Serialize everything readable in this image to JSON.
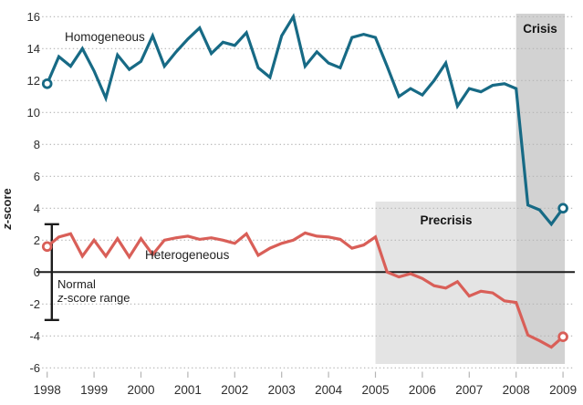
{
  "chart_data": {
    "type": "line",
    "title": "",
    "ylabel": {
      "z": "z",
      "rest": "-score"
    },
    "x_start": 1998,
    "x_step": 0.25,
    "x_tick_labels": [
      "1998",
      "1999",
      "2000",
      "2001",
      "2002",
      "2003",
      "2004",
      "2005",
      "2006",
      "2007",
      "2008",
      "2009"
    ],
    "y_ticks": [
      16,
      14,
      12,
      10,
      8,
      6,
      4,
      2,
      0,
      -2,
      -4,
      -6
    ],
    "ylim": [
      -6.4,
      16.3
    ],
    "xlim": [
      1998,
      2009
    ],
    "grid": "horizontal dotted gray lines at every 2 units; solid black line at 0",
    "legend_position": "labels drawn next to lines",
    "series": [
      {
        "name": "Homogeneous",
        "color": "#176a85",
        "endpoint_markers": "open-circle",
        "values": [
          11.8,
          13.5,
          12.9,
          14.0,
          12.6,
          10.9,
          13.6,
          12.7,
          13.2,
          14.8,
          12.9,
          13.8,
          14.6,
          15.3,
          13.7,
          14.4,
          14.2,
          15.0,
          12.8,
          12.2,
          14.8,
          16.0,
          12.9,
          13.8,
          13.1,
          12.8,
          14.7,
          14.9,
          14.7,
          12.9,
          11.0,
          11.5,
          11.1,
          12.0,
          13.1,
          10.4,
          11.5,
          11.3,
          11.7,
          11.8,
          11.5,
          4.2,
          3.9,
          3.0,
          4.0
        ]
      },
      {
        "name": "Heterogeneous",
        "color": "#d95f58",
        "endpoint_markers": "open-circle",
        "values": [
          1.6,
          2.2,
          2.4,
          1.0,
          2.0,
          1.0,
          2.1,
          0.95,
          2.1,
          1.1,
          2.0,
          2.15,
          2.25,
          2.05,
          2.15,
          2.0,
          1.8,
          2.4,
          1.05,
          1.5,
          1.8,
          2.0,
          2.45,
          2.25,
          2.2,
          2.05,
          1.5,
          1.7,
          2.2,
          0.0,
          -0.3,
          -0.1,
          -0.4,
          -0.85,
          -1.0,
          -0.6,
          -1.5,
          -1.2,
          -1.3,
          -1.8,
          -1.9,
          -3.95,
          -4.3,
          -4.7,
          -4.05
        ]
      }
    ],
    "bands": [
      {
        "label": "Precrisis",
        "x0": 2005,
        "x1": 2008,
        "color": "#e4e4e4"
      },
      {
        "label": "Crisis",
        "x0": 2008,
        "x1": 2009,
        "color": "#d2d2d2"
      }
    ],
    "normal_range": {
      "low": -3,
      "high": 3
    },
    "normal_label": {
      "line1": "Normal",
      "line2_z": "z",
      "line2_rest": "-score range"
    },
    "zero_line_value": 0
  },
  "colors": {
    "background": "#ffffff",
    "grid": "#b5b5b5",
    "zero_line": "#1c1c1c",
    "error_bar": "#1c1c1c",
    "tick_mark": "#b5b5b5",
    "text": "#2a2a2a"
  }
}
